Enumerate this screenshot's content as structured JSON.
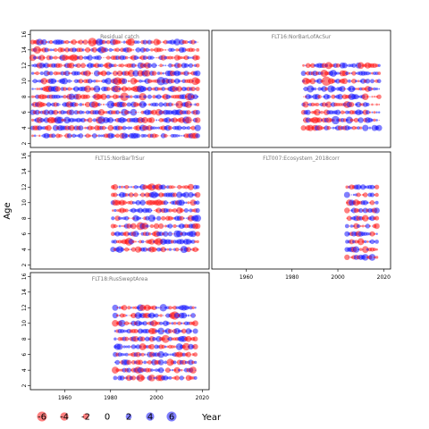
{
  "chart_data": {
    "type": "scatter",
    "encoding": "bubble",
    "ylabel": "Age",
    "xlabel": "Year",
    "xlim": [
      1945,
      2023
    ],
    "ylim": [
      1.5,
      16.5
    ],
    "x_ticks": [
      1960,
      1980,
      2000,
      2020
    ],
    "y_ticks": [
      2,
      4,
      6,
      8,
      10,
      12,
      14,
      16
    ],
    "colors": {
      "positive": "#0000ff",
      "negative": "#ff0000"
    },
    "legend": {
      "values": [
        -6,
        -4,
        -2,
        0,
        2,
        4,
        6
      ],
      "labels": [
        "-6",
        "-4",
        "-2",
        "0",
        "2",
        "4",
        "6"
      ]
    },
    "panels": [
      {
        "title": "Residual catch",
        "years": [
          1946,
          2018
        ],
        "ages": [
          3,
          15
        ]
      },
      {
        "title": "FLT16:NorBarLofAcSur",
        "years": [
          1985,
          2018
        ],
        "ages": [
          4,
          12
        ]
      },
      {
        "title": "FLT15:NorBarTrSur",
        "years": [
          1981,
          2018
        ],
        "ages": [
          4,
          12
        ]
      },
      {
        "title": "FLT007:Ecosystem_2018corr",
        "years": [
          2004,
          2017
        ],
        "ages": [
          3,
          12
        ]
      },
      {
        "title": "FLT18:RusSweptArea",
        "years": [
          1982,
          2017
        ],
        "ages": [
          3,
          12
        ]
      }
    ]
  }
}
